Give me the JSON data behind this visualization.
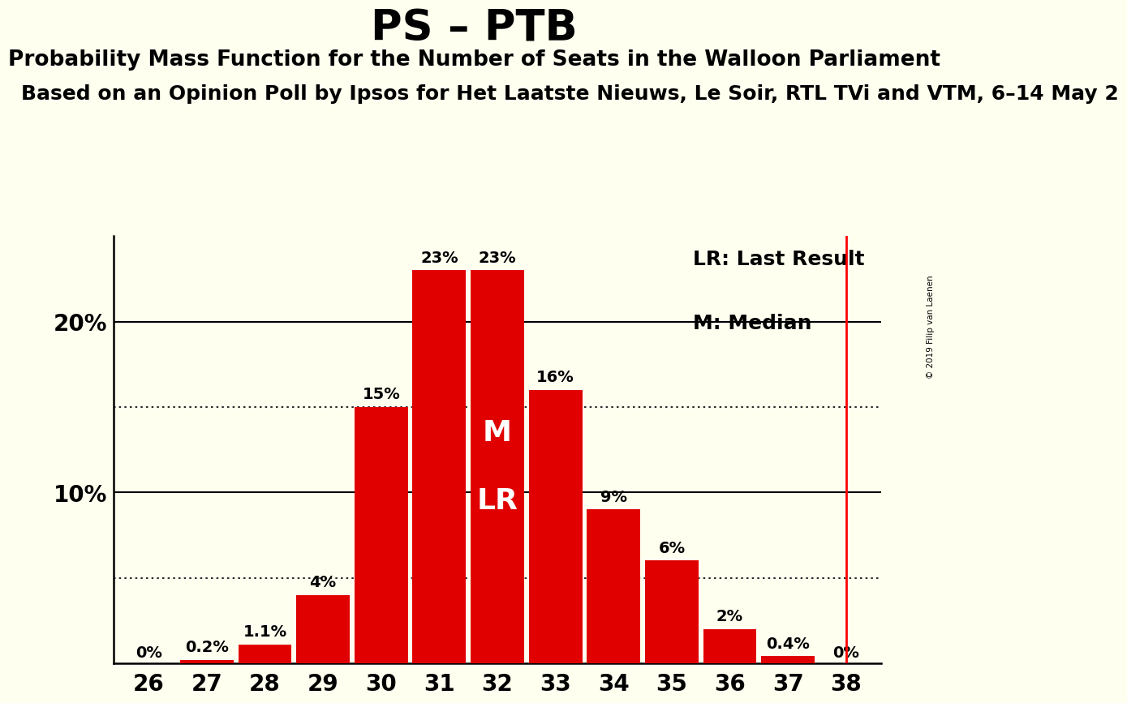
{
  "title": "PS – PTB",
  "subtitle": "Probability Mass Function for the Number of Seats in the Walloon Parliament",
  "subtitle2": "Based on an Opinion Poll by Ipsos for Het Laatste Nieuws, Le Soir, RTL TVi and VTM, 6–14 May 2",
  "copyright": "© 2019 Filip van Laenen",
  "categories": [
    26,
    27,
    28,
    29,
    30,
    31,
    32,
    33,
    34,
    35,
    36,
    37,
    38
  ],
  "values": [
    0.0,
    0.2,
    1.1,
    4.0,
    15.0,
    23.0,
    23.0,
    16.0,
    9.0,
    6.0,
    2.0,
    0.4,
    0.0
  ],
  "labels": [
    "0%",
    "0.2%",
    "1.1%",
    "4%",
    "15%",
    "23%",
    "23%",
    "16%",
    "9%",
    "6%",
    "2%",
    "0.4%",
    "0%"
  ],
  "bar_color": "#e00000",
  "background_color": "#fffff0",
  "median_seat": 32,
  "last_result_seat": 38,
  "lr_label": "LR: Last Result",
  "m_label": "M: Median",
  "ylim": [
    0,
    25
  ],
  "dotted_lines": [
    5,
    15
  ],
  "solid_lines": [
    10,
    20
  ],
  "bar_label_fontsize": 14,
  "axis_tick_fontsize": 20,
  "title_fontsize": 38,
  "subtitle_fontsize": 19,
  "subtitle2_fontsize": 18,
  "legend_fontsize": 18,
  "m_text_fontsize": 26
}
